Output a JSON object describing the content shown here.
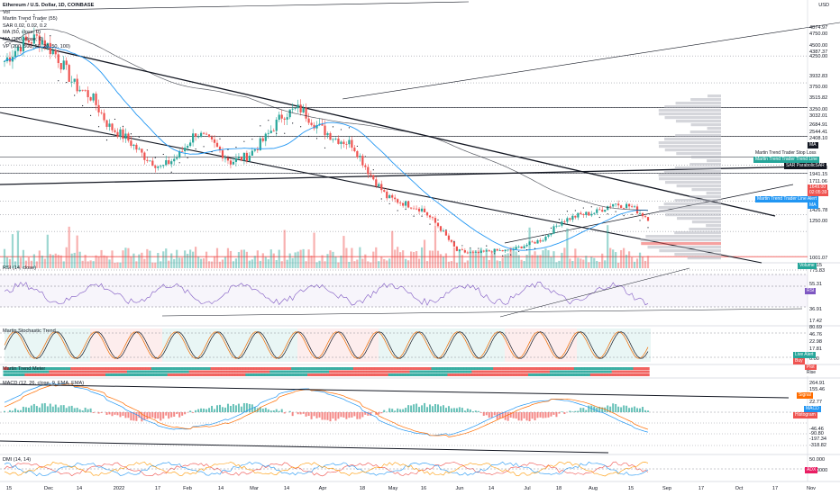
{
  "legend": {
    "title": "Ethereum / U.S. Dollar, 1D, COINBASE",
    "lines": [
      "Vol",
      "Martin Trend Trader (55)",
      "SAR 0.02, 0.02, 0.2",
      "MA (50, close, 0)",
      "MA (200, close, 0)",
      "VP (200, 500, 50, 20, 50, 100)"
    ]
  },
  "currency": "USD",
  "pane_labels": {
    "rsi": "RSI (14, close)",
    "stoch": "Martin Stochastic Trend",
    "trend": "Martin Trend Meter",
    "macd": "MACD (12, 26, close, 9, EMA, EMA)",
    "dmi": "DMI (14, 14)"
  },
  "price_axis": [
    "4874.97",
    "4750.00",
    "4500.00",
    "4387.37",
    "4250.00",
    "3932.83",
    "3750.00",
    "3515.82",
    "3250.00",
    "3032.01",
    "2684.91",
    "2544.41",
    "2408.10",
    "2000.00",
    "1941.15",
    "1711.06",
    "1500.00",
    "1426.78",
    "1250.00",
    "1001.07",
    "775.83"
  ],
  "rsi_axis": [
    "77.15",
    "55.31",
    "36.91"
  ],
  "stoch_axis": [
    "17.42",
    "80.69",
    "46.76",
    "22.98",
    "17.81",
    "0.00"
  ],
  "macd_axis": [
    "264.91",
    "155.46",
    "22.77",
    "-46.46",
    "-90.80",
    "-197.34",
    "-318.82"
  ],
  "dmi_axis": [
    "50.000",
    "25.0000"
  ],
  "price_tags": [
    {
      "text": "Martin Trend Trader Stop Loss",
      "color": "#ffffff",
      "fg": "#131722"
    },
    {
      "text": "Martin Trend Trader Trend Line",
      "color": "#26a69a",
      "fg": "#ffffff"
    },
    {
      "text": "SAR ParabolicSAR",
      "color": "#131722",
      "fg": "#ffffff"
    },
    {
      "text": "1649.00",
      "color": "#ef5350",
      "fg": "#ffffff"
    },
    {
      "text": "02:05:39",
      "color": "#ef5350",
      "fg": "#ffffff"
    },
    {
      "text": "Martin Trend Trader Line Alert",
      "color": "#2196f3",
      "fg": "#ffffff"
    },
    {
      "text": "MA",
      "color": "#2196f3",
      "fg": "#ffffff"
    },
    {
      "text": "MA",
      "color": "#131722",
      "fg": "#ffffff"
    },
    {
      "text": "Volume",
      "color": "#26a69a",
      "fg": "#ffffff"
    }
  ],
  "side_tags": {
    "rsi": "RSI",
    "live_alert": "Live Alert",
    "buy": "Buy",
    "plot": "Plot",
    "rise": "Rise",
    "signal": "Signal",
    "macd": "MACD",
    "histogram": "Histogram",
    "adx": "ADX"
  },
  "x_axis": [
    "15",
    "Dec",
    "14",
    "2022",
    "17",
    "Feb",
    "14",
    "Mar",
    "14",
    "Apr",
    "18",
    "May",
    "16",
    "Jun",
    "14",
    "Jul",
    "18",
    "Aug",
    "15",
    "Sep",
    "17",
    "Oct",
    "17",
    "Nov"
  ],
  "colors": {
    "up": "#26a69a",
    "down": "#ef5350",
    "ma50": "#2196f3",
    "ma200": "#131722",
    "vp": "#b2b5be",
    "vp_poc": "#ef5350",
    "grid": "#e0e3eb"
  },
  "chart_data": {
    "type": "candlestick",
    "symbol": "Ethereum / U.S. Dollar",
    "interval": "1D",
    "exchange": "COINBASE",
    "x_range": [
      "15",
      "Nov"
    ],
    "y_range": [
      775.83,
      4874.97
    ],
    "last_price": 1649.0,
    "anchor_prices": [
      4300,
      4600,
      4700,
      4400,
      3900,
      3700,
      3200,
      3000,
      2700,
      2500,
      2700,
      3100,
      2900,
      2600,
      2700,
      3000,
      3400,
      3500,
      3200,
      3000,
      2900,
      2400,
      2000,
      1900,
      1800,
      1500,
      1100,
      1050,
      1100,
      1100,
      1200,
      1300,
      1600,
      1700,
      1750,
      1900,
      1850,
      1650
    ],
    "indicators": [
      "RSI (14, close)",
      "Martin Stochastic Trend",
      "Martin Trend Meter",
      "MACD (12, 26, close, 9, EMA, EMA)",
      "DMI (14, 14)"
    ]
  }
}
